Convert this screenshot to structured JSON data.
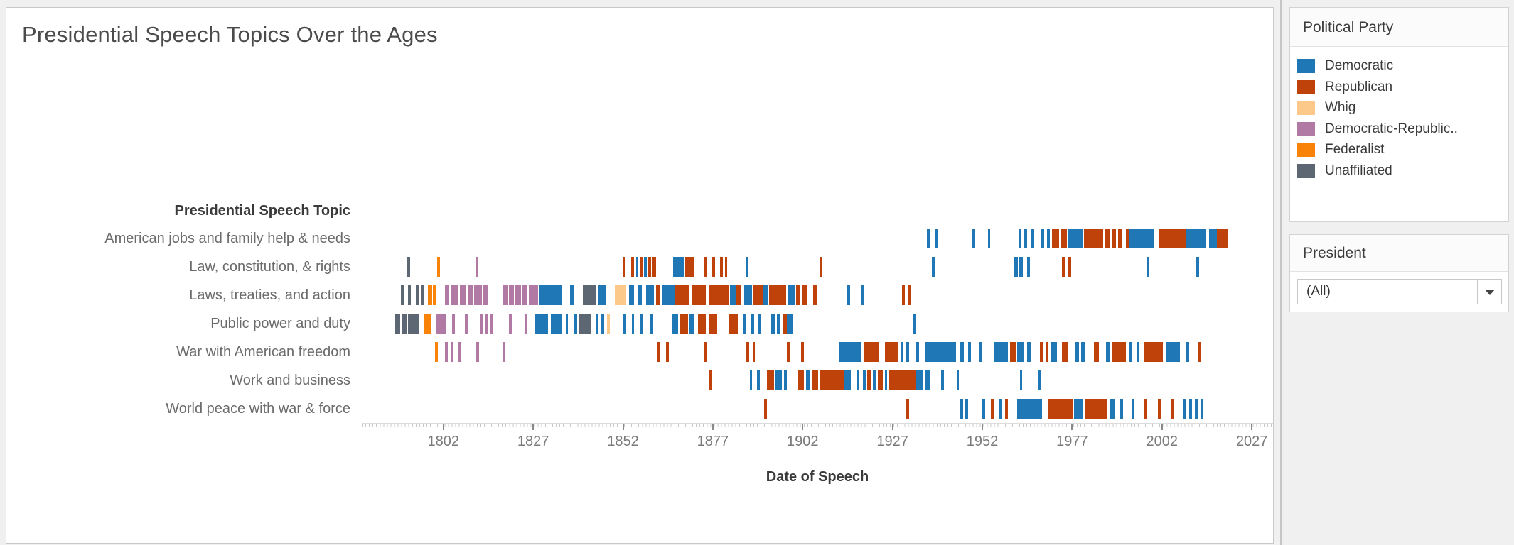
{
  "chart": {
    "title": "Presidential Speech Topics Over the Ages",
    "row_header": "Presidential Speech Topic",
    "x_axis_label": "Date of Speech"
  },
  "legend": {
    "title": "Political Party",
    "items": [
      {
        "label": "Democratic",
        "party": "D"
      },
      {
        "label": "Republican",
        "party": "R"
      },
      {
        "label": "Whig",
        "party": "W"
      },
      {
        "label": "Democratic-Republic..",
        "party": "DR"
      },
      {
        "label": "Federalist",
        "party": "F"
      },
      {
        "label": "Unaffiliated",
        "party": "U"
      }
    ]
  },
  "filter": {
    "title": "President",
    "value": "(All)"
  },
  "chart_data": {
    "type": "gantt-timeline",
    "title": "Presidential Speech Topics Over the Ages",
    "xlabel": "Date of Speech",
    "ylabel": "Presidential Speech Topic",
    "x_ticks": [
      1802,
      1827,
      1852,
      1877,
      1902,
      1927,
      1952,
      1977,
      2002,
      2027
    ],
    "x_range": [
      1779.3,
      2032.9
    ],
    "grid": false,
    "legend_position": "right",
    "parties": {
      "D": {
        "name": "Democratic",
        "color": "#2077b5"
      },
      "R": {
        "name": "Republican",
        "color": "#bf420a"
      },
      "W": {
        "name": "Whig",
        "color": "#fcc98b"
      },
      "DR": {
        "name": "Democratic-Republican",
        "color": "#b07aa5"
      },
      "F": {
        "name": "Federalist",
        "color": "#f98309"
      },
      "U": {
        "name": "Unaffiliated",
        "color": "#5c6773"
      }
    },
    "mark_format": [
      "start_year",
      "span_years",
      "party"
    ],
    "rows": [
      {
        "label": "American jobs and family help & needs",
        "marks": [
          [
            1936.5,
            0.9,
            "D"
          ],
          [
            1938.8,
            0.9,
            "D"
          ],
          [
            1949,
            0.9,
            "D"
          ],
          [
            1953.5,
            0.9,
            "D"
          ],
          [
            1962,
            0.9,
            "D"
          ],
          [
            1963.7,
            0.9,
            "D"
          ],
          [
            1965.5,
            0.9,
            "D"
          ],
          [
            1968.5,
            0.9,
            "D"
          ],
          [
            1970,
            0.9,
            "D"
          ],
          [
            1971.3,
            2.1,
            "R"
          ],
          [
            1973.7,
            2,
            "R"
          ],
          [
            1975.9,
            4.1,
            "D"
          ],
          [
            1980.3,
            0.6,
            "R"
          ],
          [
            1981,
            4.8,
            "R"
          ],
          [
            1986.2,
            1.3,
            "R"
          ],
          [
            1988,
            1.3,
            "R"
          ],
          [
            1989.8,
            1.2,
            "R"
          ],
          [
            1992,
            0.8,
            "R"
          ],
          [
            1993,
            6.8,
            "D"
          ],
          [
            2001.3,
            7.4,
            "R"
          ],
          [
            2008.7,
            5.7,
            "D"
          ],
          [
            2015.1,
            2.2,
            "D"
          ],
          [
            2017.3,
            3,
            "R"
          ]
        ]
      },
      {
        "label": "Law, constitution, & rights",
        "marks": [
          [
            1792,
            0.9,
            "U"
          ],
          [
            1800.3,
            0.9,
            "F"
          ],
          [
            1811,
            0.9,
            "DR"
          ],
          [
            1851.8,
            0.9,
            "R"
          ],
          [
            1854.3,
            0.9,
            "R"
          ],
          [
            1855.6,
            0.8,
            "D"
          ],
          [
            1856.7,
            0.8,
            "R"
          ],
          [
            1857.9,
            0.7,
            "D"
          ],
          [
            1859,
            0.8,
            "R"
          ],
          [
            1860,
            1.3,
            "R"
          ],
          [
            1866,
            3.2,
            "D"
          ],
          [
            1869.2,
            2.6,
            "R"
          ],
          [
            1874.6,
            0.9,
            "R"
          ],
          [
            1876.8,
            0.9,
            "R"
          ],
          [
            1879,
            0.9,
            "R"
          ],
          [
            1880.3,
            0.9,
            "R"
          ],
          [
            1886.2,
            0.9,
            "D"
          ],
          [
            1906.8,
            0.9,
            "R"
          ],
          [
            1937.9,
            0.9,
            "D"
          ],
          [
            1960.8,
            1.2,
            "D"
          ],
          [
            1962.3,
            1,
            "D"
          ],
          [
            1964.5,
            0.9,
            "D"
          ],
          [
            1974.1,
            0.9,
            "R"
          ],
          [
            1976,
            0.9,
            "R"
          ],
          [
            1997.6,
            0.9,
            "D"
          ],
          [
            2011.5,
            0.9,
            "D"
          ]
        ]
      },
      {
        "label": "Laws, treaties, and action",
        "marks": [
          [
            1790.2,
            0.9,
            "U"
          ],
          [
            1792.2,
            0.9,
            "U"
          ],
          [
            1794.3,
            1.2,
            "U"
          ],
          [
            1795.8,
            1.1,
            "U"
          ],
          [
            1797.7,
            1.2,
            "F"
          ],
          [
            1799.1,
            1.1,
            "F"
          ],
          [
            1802.4,
            1.2,
            "DR"
          ],
          [
            1804.1,
            2,
            "DR"
          ],
          [
            1806.6,
            1.6,
            "DR"
          ],
          [
            1808.8,
            1.5,
            "DR"
          ],
          [
            1810.6,
            2.3,
            "DR"
          ],
          [
            1813.2,
            1.3,
            "DR"
          ],
          [
            1818.6,
            1.4,
            "DR"
          ],
          [
            1820.3,
            1.5,
            "DR"
          ],
          [
            1822.1,
            1.6,
            "DR"
          ],
          [
            1824,
            1.5,
            "DR"
          ],
          [
            1825.8,
            2.6,
            "DR"
          ],
          [
            1828.5,
            6.8,
            "D"
          ],
          [
            1837.2,
            1.3,
            "D"
          ],
          [
            1840.9,
            3.9,
            "U"
          ],
          [
            1844.9,
            2.3,
            "D"
          ],
          [
            1849.7,
            3.4,
            "W"
          ],
          [
            1853.7,
            1.5,
            "D"
          ],
          [
            1856,
            1.3,
            "D"
          ],
          [
            1858.4,
            2.4,
            "D"
          ],
          [
            1861.2,
            1.3,
            "R"
          ],
          [
            1863,
            3.4,
            "D"
          ],
          [
            1866.5,
            4.2,
            "R"
          ],
          [
            1871,
            4.2,
            "R"
          ],
          [
            1876,
            5.6,
            "R"
          ],
          [
            1881.7,
            1.8,
            "D"
          ],
          [
            1883.6,
            1.5,
            "R"
          ],
          [
            1885.7,
            2.3,
            "D"
          ],
          [
            1888.1,
            2.8,
            "R"
          ],
          [
            1891,
            1.5,
            "D"
          ],
          [
            1892.6,
            5,
            "R"
          ],
          [
            1897.7,
            2.3,
            "D"
          ],
          [
            1900.1,
            1.1,
            "R"
          ],
          [
            1901.7,
            1.6,
            "R"
          ],
          [
            1904.9,
            1.1,
            "R"
          ],
          [
            1914.4,
            0.9,
            "D"
          ],
          [
            1918.1,
            0.9,
            "D"
          ],
          [
            1929.6,
            0.9,
            "R"
          ],
          [
            1931.3,
            0.9,
            "R"
          ]
        ]
      },
      {
        "label": "Public power and duty",
        "marks": [
          [
            1788.6,
            1.5,
            "U"
          ],
          [
            1790.4,
            1.5,
            "U"
          ],
          [
            1792.2,
            3,
            "U"
          ],
          [
            1796.5,
            2.3,
            "F"
          ],
          [
            1800.1,
            0.6,
            "DR"
          ],
          [
            1800.9,
            1.8,
            "DR"
          ],
          [
            1804.4,
            0.8,
            "DR"
          ],
          [
            1808,
            0.9,
            "DR"
          ],
          [
            1812.3,
            0.9,
            "DR"
          ],
          [
            1813.6,
            0.9,
            "DR"
          ],
          [
            1814.8,
            1,
            "DR"
          ],
          [
            1820.2,
            0.9,
            "DR"
          ],
          [
            1824.5,
            0.9,
            "DR"
          ],
          [
            1827.5,
            3.7,
            "D"
          ],
          [
            1832,
            3.2,
            "D"
          ],
          [
            1836,
            0.9,
            "D"
          ],
          [
            1838.4,
            0.9,
            "D"
          ],
          [
            1839.7,
            3.5,
            "U"
          ],
          [
            1844.5,
            0.9,
            "D"
          ],
          [
            1846,
            0.9,
            "D"
          ],
          [
            1847.6,
            0.7,
            "W"
          ],
          [
            1852,
            0.9,
            "D"
          ],
          [
            1854.4,
            0.9,
            "D"
          ],
          [
            1856.8,
            0.9,
            "D"
          ],
          [
            1859.5,
            0.9,
            "D"
          ],
          [
            1865.6,
            1.9,
            "D"
          ],
          [
            1868,
            2.2,
            "R"
          ],
          [
            1870.4,
            1.6,
            "D"
          ],
          [
            1872.8,
            2.4,
            "R"
          ],
          [
            1876,
            2.4,
            "R"
          ],
          [
            1881.6,
            2.4,
            "R"
          ],
          [
            1885.6,
            0.9,
            "D"
          ],
          [
            1887.7,
            0.9,
            "D"
          ],
          [
            1889.6,
            0.9,
            "D"
          ],
          [
            1893.1,
            1.3,
            "D"
          ],
          [
            1894.9,
            1.1,
            "D"
          ],
          [
            1896.3,
            1.3,
            "R"
          ],
          [
            1897.6,
            1.6,
            "D"
          ],
          [
            1932.8,
            0.9,
            "D"
          ]
        ]
      },
      {
        "label": "War with American freedom",
        "marks": [
          [
            1799.7,
            0.9,
            "F"
          ],
          [
            1802.4,
            0.9,
            "DR"
          ],
          [
            1804,
            0.9,
            "DR"
          ],
          [
            1806,
            0.9,
            "DR"
          ],
          [
            1811.2,
            0.9,
            "DR"
          ],
          [
            1818.4,
            0.9,
            "DR"
          ],
          [
            1861.6,
            0.9,
            "R"
          ],
          [
            1864,
            0.9,
            "R"
          ],
          [
            1874.4,
            0.9,
            "R"
          ],
          [
            1886.4,
            0.9,
            "R"
          ],
          [
            1888,
            0.9,
            "R"
          ],
          [
            1897.6,
            0.9,
            "R"
          ],
          [
            1901.6,
            0.9,
            "R"
          ],
          [
            1912,
            6.4,
            "D"
          ],
          [
            1919.2,
            4,
            "R"
          ],
          [
            1924.8,
            4,
            "R"
          ],
          [
            1929.3,
            0.8,
            "D"
          ],
          [
            1930.9,
            0.9,
            "D"
          ],
          [
            1933.6,
            0.9,
            "D"
          ],
          [
            1936,
            5.6,
            "D"
          ],
          [
            1941.7,
            3.1,
            "D"
          ],
          [
            1945.6,
            1.3,
            "D"
          ],
          [
            1948,
            0.9,
            "D"
          ],
          [
            1951.2,
            0.9,
            "D"
          ],
          [
            1955.2,
            4,
            "D"
          ],
          [
            1959.7,
            1.6,
            "R"
          ],
          [
            1961.6,
            1.9,
            "D"
          ],
          [
            1964.5,
            1.1,
            "D"
          ],
          [
            1968,
            0.9,
            "R"
          ],
          [
            1969.6,
            0.9,
            "R"
          ],
          [
            1971.2,
            1.6,
            "D"
          ],
          [
            1974.1,
            1.9,
            "R"
          ],
          [
            1977.8,
            1.2,
            "D"
          ],
          [
            1979.4,
            1.4,
            "D"
          ],
          [
            1983,
            1.6,
            "R"
          ],
          [
            1986.4,
            1.1,
            "D"
          ],
          [
            1988,
            4,
            "R"
          ],
          [
            1992.8,
            1.1,
            "D"
          ],
          [
            1994.9,
            0.7,
            "D"
          ],
          [
            1996.8,
            5.6,
            "R"
          ],
          [
            2003.2,
            4,
            "D"
          ],
          [
            2008.8,
            0.9,
            "D"
          ],
          [
            2012,
            0.9,
            "R"
          ]
        ]
      },
      {
        "label": "Work and business",
        "marks": [
          [
            1876,
            0.9,
            "R"
          ],
          [
            1887.2,
            0.9,
            "D"
          ],
          [
            1889.3,
            0.9,
            "D"
          ],
          [
            1892,
            2.1,
            "R"
          ],
          [
            1894.4,
            1.9,
            "D"
          ],
          [
            1896.8,
            0.8,
            "D"
          ],
          [
            1900.5,
            1.9,
            "R"
          ],
          [
            1902.9,
            1.1,
            "D"
          ],
          [
            1904.8,
            1.6,
            "R"
          ],
          [
            1906.9,
            6.7,
            "R"
          ],
          [
            1913.6,
            1.9,
            "D"
          ],
          [
            1917.1,
            0.9,
            "D"
          ],
          [
            1918.7,
            0.9,
            "D"
          ],
          [
            1920,
            1.3,
            "R"
          ],
          [
            1921.6,
            0.9,
            "D"
          ],
          [
            1922.9,
            1.6,
            "R"
          ],
          [
            1924.8,
            0.9,
            "D"
          ],
          [
            1926.1,
            7.5,
            "R"
          ],
          [
            1933.6,
            2.1,
            "D"
          ],
          [
            1936,
            1.6,
            "D"
          ],
          [
            1940.5,
            0.9,
            "D"
          ],
          [
            1944.8,
            0.9,
            "D"
          ],
          [
            1962.4,
            0.9,
            "D"
          ],
          [
            1967.7,
            0.9,
            "D"
          ]
        ]
      },
      {
        "label": "World peace with war & force",
        "marks": [
          [
            1891.2,
            0.9,
            "R"
          ],
          [
            1930.9,
            0.9,
            "R"
          ],
          [
            1945.9,
            0.8,
            "D"
          ],
          [
            1947.3,
            0.8,
            "D"
          ],
          [
            1952,
            0.9,
            "D"
          ],
          [
            1954.4,
            0.9,
            "R"
          ],
          [
            1956.5,
            0.9,
            "D"
          ],
          [
            1958.3,
            0.9,
            "R"
          ],
          [
            1961.6,
            7.2,
            "D"
          ],
          [
            1970.4,
            6.9,
            "R"
          ],
          [
            1977.6,
            2.4,
            "D"
          ],
          [
            1980.5,
            6.4,
            "R"
          ],
          [
            1987.5,
            1.6,
            "D"
          ],
          [
            1990.1,
            1.1,
            "D"
          ],
          [
            1993.6,
            0.9,
            "D"
          ],
          [
            1997.1,
            0.9,
            "R"
          ],
          [
            2000.8,
            0.9,
            "R"
          ],
          [
            2004.5,
            0.9,
            "R"
          ],
          [
            2008,
            0.8,
            "D"
          ],
          [
            2009.6,
            0.8,
            "D"
          ],
          [
            2011.2,
            0.8,
            "D"
          ],
          [
            2012.8,
            0.8,
            "D"
          ]
        ]
      }
    ]
  }
}
